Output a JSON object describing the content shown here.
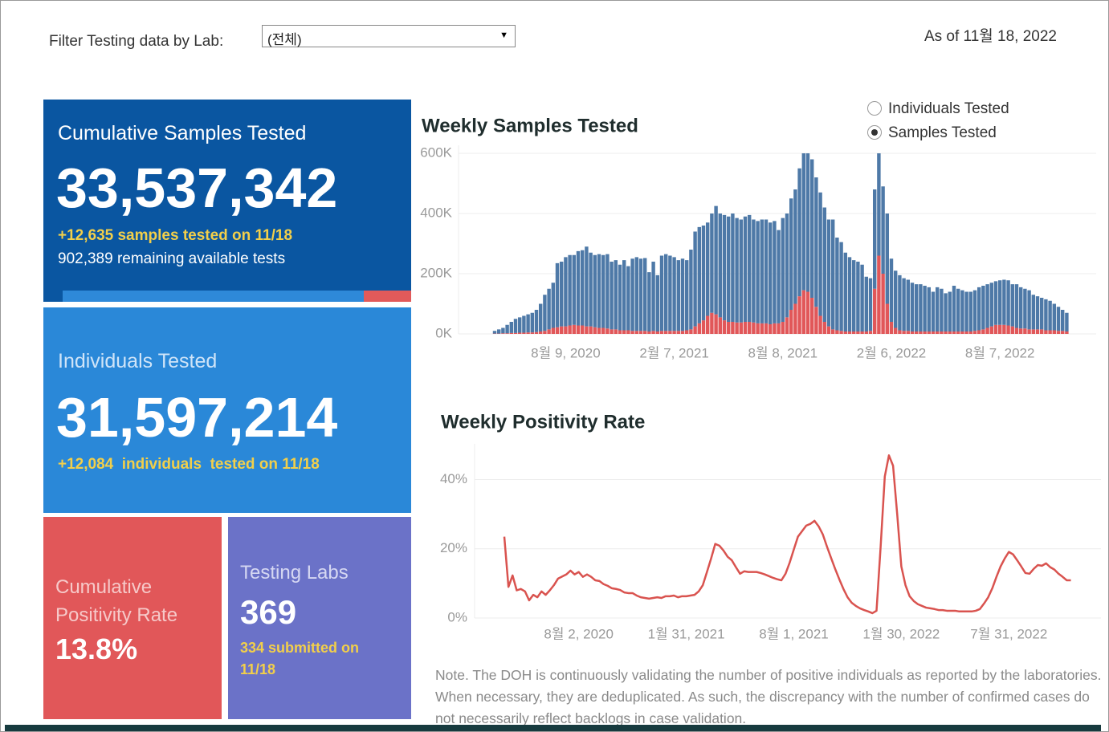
{
  "header": {
    "filter_label": "Filter Testing data by Lab:",
    "filter_value": "(전체)",
    "as_of": "As of 11월 18, 2022"
  },
  "kpis": {
    "samples": {
      "title": "Cumulative Samples Tested",
      "value": "33,537,342",
      "delta": "+12,635 samples tested on 11/18",
      "remaining": "902,389 remaining available tests"
    },
    "individuals": {
      "title": "Individuals Tested",
      "value": "31,597,214",
      "delta": "+12,084  individuals  tested on 11/18"
    },
    "positivity": {
      "title": "Cumulative Positivity Rate",
      "value": "13.8%"
    },
    "labs": {
      "title": "Testing Labs",
      "value": "369",
      "delta": "334 submitted on 11/18"
    }
  },
  "radio": {
    "options": [
      "Individuals Tested",
      "Samples Tested"
    ],
    "selected": 1
  },
  "note": "Note. The DOH is continuously validating the number of positive individuals as reported by the laboratories. When necessary, they are deduplicated. As such, the discrepancy with the number of confirmed cases do not necessarily reflect backlogs in case validation.",
  "chart_data": [
    {
      "type": "bar",
      "title": "Weekly Samples Tested",
      "stacked": true,
      "grid": true,
      "ylim": [
        0,
        600
      ],
      "yticks": [
        {
          "value": 0,
          "label": "0K"
        },
        {
          "value": 200,
          "label": "200K"
        },
        {
          "value": 400,
          "label": "400K"
        },
        {
          "value": 600,
          "label": "600K"
        }
      ],
      "categories": [
        null,
        null,
        null,
        null,
        null,
        null,
        null,
        null,
        null,
        null,
        null,
        null,
        null,
        null,
        null,
        null,
        null,
        "8월 9, 2020",
        null,
        null,
        null,
        null,
        null,
        null,
        null,
        null,
        null,
        null,
        null,
        null,
        null,
        null,
        null,
        null,
        null,
        null,
        null,
        null,
        null,
        null,
        null,
        null,
        null,
        "2월 7, 2021",
        null,
        null,
        null,
        null,
        null,
        null,
        null,
        null,
        null,
        null,
        null,
        null,
        null,
        null,
        null,
        null,
        null,
        null,
        null,
        null,
        null,
        null,
        null,
        null,
        null,
        "8월 8, 2021",
        null,
        null,
        null,
        null,
        null,
        null,
        null,
        null,
        null,
        null,
        null,
        null,
        null,
        null,
        null,
        null,
        null,
        null,
        null,
        null,
        null,
        null,
        null,
        null,
        null,
        "2월 6, 2022",
        null,
        null,
        null,
        null,
        null,
        null,
        null,
        null,
        null,
        null,
        null,
        null,
        null,
        null,
        null,
        null,
        null,
        null,
        null,
        null,
        null,
        null,
        null,
        null,
        null,
        "8월 7, 2022",
        null,
        null,
        null,
        null,
        null,
        null,
        null,
        null,
        null,
        null,
        null,
        null,
        null,
        null,
        null,
        null
      ],
      "series": [
        {
          "color": "#e15759",
          "values": [
            1,
            1,
            2,
            2,
            3,
            3,
            4,
            4,
            5,
            5,
            6,
            8,
            10,
            15,
            20,
            22,
            25,
            25,
            28,
            30,
            28,
            28,
            25,
            25,
            22,
            20,
            20,
            18,
            15,
            15,
            12,
            12,
            12,
            10,
            10,
            10,
            10,
            8,
            10,
            8,
            10,
            10,
            10,
            10,
            10,
            10,
            12,
            15,
            25,
            35,
            45,
            60,
            70,
            65,
            55,
            45,
            40,
            40,
            38,
            38,
            40,
            40,
            38,
            35,
            35,
            35,
            32,
            35,
            35,
            40,
            55,
            80,
            100,
            125,
            145,
            140,
            120,
            90,
            60,
            40,
            25,
            15,
            12,
            10,
            8,
            8,
            8,
            8,
            8,
            8,
            10,
            150,
            260,
            200,
            100,
            40,
            20,
            12,
            10,
            10,
            8,
            8,
            8,
            8,
            8,
            8,
            8,
            8,
            8,
            8,
            8,
            8,
            8,
            8,
            8,
            10,
            12,
            15,
            20,
            25,
            30,
            30,
            30,
            28,
            25,
            20,
            18,
            18,
            15,
            15,
            15,
            15,
            12,
            12,
            12,
            10,
            10,
            8
          ]
        },
        {
          "color": "#4e79a7",
          "values": [
            9,
            14,
            18,
            28,
            37,
            47,
            51,
            56,
            60,
            65,
            74,
            92,
            120,
            135,
            150,
            213,
            215,
            230,
            234,
            232,
            247,
            250,
            265,
            245,
            240,
            245,
            242,
            247,
            225,
            230,
            218,
            233,
            213,
            240,
            245,
            240,
            242,
            197,
            230,
            187,
            250,
            255,
            250,
            245,
            235,
            240,
            233,
            265,
            315,
            320,
            315,
            310,
            330,
            360,
            345,
            350,
            350,
            360,
            347,
            342,
            350,
            355,
            342,
            340,
            345,
            345,
            338,
            340,
            310,
            345,
            345,
            370,
            380,
            425,
            455,
            460,
            460,
            430,
            410,
            380,
            355,
            365,
            308,
            295,
            262,
            247,
            237,
            232,
            222,
            182,
            175,
            330,
            340,
            290,
            300,
            210,
            190,
            183,
            175,
            170,
            162,
            157,
            157,
            152,
            147,
            132,
            147,
            142,
            127,
            132,
            152,
            142,
            137,
            132,
            132,
            135,
            143,
            145,
            145,
            145,
            145,
            148,
            150,
            150,
            140,
            145,
            137,
            132,
            130,
            115,
            110,
            105,
            103,
            98,
            88,
            80,
            70,
            62
          ]
        }
      ]
    },
    {
      "type": "line",
      "title": "Weekly Positivity Rate",
      "grid": true,
      "color": "#d9534f",
      "ylim": [
        0,
        48
      ],
      "yticks": [
        {
          "value": 0,
          "label": "0%"
        },
        {
          "value": 20,
          "label": "20%"
        },
        {
          "value": 40,
          "label": "40%"
        }
      ],
      "categories": [
        null,
        null,
        null,
        null,
        null,
        null,
        null,
        null,
        null,
        null,
        null,
        null,
        null,
        null,
        null,
        null,
        null,
        null,
        "8월 2, 2020",
        null,
        null,
        null,
        null,
        null,
        null,
        null,
        null,
        null,
        null,
        null,
        null,
        null,
        null,
        null,
        null,
        null,
        null,
        null,
        null,
        null,
        null,
        null,
        null,
        null,
        "1월 31, 2021",
        null,
        null,
        null,
        null,
        null,
        null,
        null,
        null,
        null,
        null,
        null,
        null,
        null,
        null,
        null,
        null,
        null,
        null,
        null,
        null,
        null,
        null,
        null,
        null,
        null,
        "8월 1, 2021",
        null,
        null,
        null,
        null,
        null,
        null,
        null,
        null,
        null,
        null,
        null,
        null,
        null,
        null,
        null,
        null,
        null,
        null,
        null,
        null,
        null,
        null,
        null,
        null,
        null,
        "1월 30, 2022",
        null,
        null,
        null,
        null,
        null,
        null,
        null,
        null,
        null,
        null,
        null,
        null,
        null,
        null,
        null,
        null,
        null,
        null,
        null,
        null,
        null,
        null,
        null,
        null,
        null,
        "7월 31, 2022",
        null,
        null,
        null,
        null,
        null,
        null,
        null,
        null,
        null,
        null,
        null,
        null,
        null,
        null,
        null
      ],
      "values": [
        23.5,
        9,
        12.3,
        8,
        8.4,
        7.7,
        5.1,
        6.7,
        6,
        7.7,
        6.7,
        8,
        9.5,
        11.4,
        12,
        12.6,
        13.7,
        12.6,
        13.3,
        11.9,
        12.6,
        11.9,
        10.9,
        10.7,
        9.8,
        9.3,
        8.6,
        8.4,
        8.1,
        7.4,
        7.2,
        7.2,
        6.5,
        6,
        5.8,
        5.6,
        5.8,
        6,
        5.8,
        6.3,
        6.3,
        6.5,
        6,
        6.3,
        6.3,
        6.5,
        6.7,
        7.7,
        9.5,
        13.3,
        17.2,
        21.4,
        20.9,
        19.5,
        17.7,
        16.7,
        14.7,
        12.8,
        13.5,
        13.3,
        13.3,
        13.3,
        13,
        12.6,
        12.1,
        11.6,
        11.2,
        10.9,
        12.8,
        16,
        19.8,
        23.5,
        25.1,
        26.7,
        27.2,
        28.1,
        26.5,
        24.2,
        20.7,
        17.4,
        14.2,
        11.2,
        8.4,
        6,
        4.4,
        3.5,
        2.8,
        2.3,
        1.9,
        1.4,
        2.1,
        20.7,
        40.9,
        47,
        44,
        30,
        14.9,
        9.5,
        6.3,
        4.9,
        4,
        3.5,
        3,
        2.8,
        2.6,
        2.3,
        2.3,
        2.1,
        2.1,
        2.1,
        1.9,
        1.9,
        1.9,
        1.9,
        2.1,
        2.6,
        4.2,
        6,
        8.6,
        11.9,
        14.9,
        17.2,
        19.1,
        18.4,
        16.7,
        14.9,
        13,
        12.8,
        14.2,
        15.3,
        15.1,
        15.8,
        14.7,
        14,
        12.8,
        11.9,
        10.9,
        10.9
      ]
    }
  ]
}
